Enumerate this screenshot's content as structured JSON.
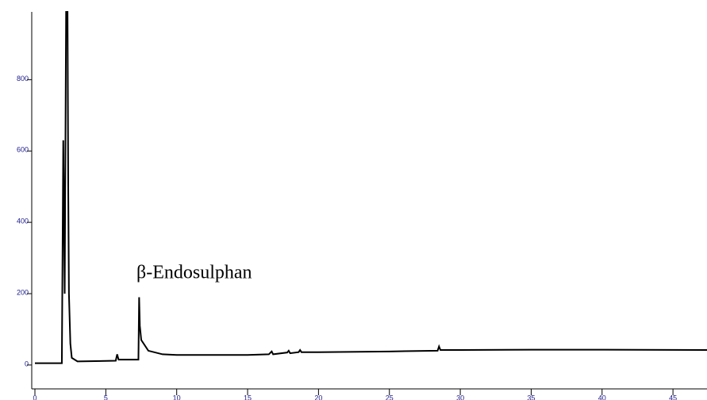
{
  "chart_data": {
    "type": "line",
    "annotation": "β-Endosulphan",
    "x": [
      0,
      1.9,
      2.0,
      2.1,
      2.2,
      2.3,
      2.35,
      2.4,
      2.5,
      2.6,
      3,
      5.7,
      5.8,
      5.9,
      7.3,
      7.35,
      7.4,
      7.5,
      8,
      9,
      10,
      15,
      16.5,
      16.7,
      16.8,
      17.8,
      17.9,
      18,
      18.6,
      18.7,
      18.8,
      20,
      25,
      28.4,
      28.5,
      28.6,
      30,
      35,
      40,
      47.4
    ],
    "series": [
      {
        "color": "#000000",
        "values": [
          5,
          5,
          630,
          200,
          990,
          990,
          500,
          200,
          60,
          20,
          10,
          12,
          30,
          15,
          15,
          190,
          110,
          70,
          40,
          30,
          28,
          28,
          30,
          38,
          30,
          35,
          40,
          33,
          36,
          42,
          36,
          36,
          38,
          40,
          52,
          42,
          42,
          43,
          43,
          42
        ]
      }
    ],
    "xlim": [
      0,
      47.4
    ],
    "ylim": [
      -67,
      990
    ],
    "xticks": [
      0,
      5,
      10,
      15,
      20,
      25,
      30,
      35,
      40,
      45
    ],
    "yticks": [
      0,
      200,
      400,
      600,
      800
    ],
    "tick_color": "#1a1a8c"
  }
}
